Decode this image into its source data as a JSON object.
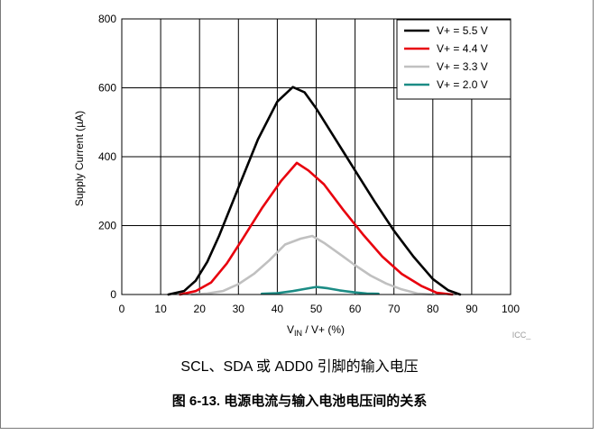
{
  "chart_data": {
    "type": "line",
    "title": "",
    "xlabel": {
      "main": "V",
      "sub": "IN",
      "rest": " / V+ (%)"
    },
    "ylabel": "Supply Current (µA)",
    "xlim": [
      0,
      100
    ],
    "ylim": [
      0,
      800
    ],
    "xticks": [
      0,
      10,
      20,
      30,
      40,
      50,
      60,
      70,
      80,
      90,
      100
    ],
    "yticks": [
      0,
      200,
      400,
      600,
      800
    ],
    "grid": true,
    "legend_position": "top-right",
    "series": [
      {
        "name": "V+ = 5.5 V",
        "color": "#000000",
        "x": [
          12,
          16,
          19,
          22,
          25,
          30,
          35,
          40,
          44,
          47,
          50,
          55,
          60,
          65,
          70,
          75,
          80,
          84,
          87
        ],
        "y": [
          0,
          10,
          40,
          95,
          170,
          310,
          450,
          560,
          602,
          587,
          540,
          450,
          360,
          270,
          185,
          110,
          45,
          12,
          0
        ]
      },
      {
        "name": "V+ = 4.4 V",
        "color": "#e8000d",
        "x": [
          15,
          19,
          23,
          27,
          31,
          36,
          41,
          45,
          48,
          52,
          57,
          62,
          67,
          72,
          77,
          81,
          85
        ],
        "y": [
          0,
          10,
          35,
          90,
          160,
          250,
          330,
          382,
          360,
          320,
          245,
          175,
          110,
          60,
          25,
          5,
          0
        ]
      },
      {
        "name": "V+ = 3.3 V",
        "color": "#c0c0c0",
        "x": [
          18,
          22,
          26,
          30,
          34,
          38,
          42,
          46,
          49,
          52,
          56,
          60,
          64,
          68,
          72,
          76,
          80
        ],
        "y": [
          0,
          3,
          10,
          30,
          60,
          100,
          145,
          162,
          170,
          150,
          118,
          85,
          55,
          32,
          15,
          3,
          0
        ]
      },
      {
        "name": "V+ = 2.0 V",
        "color": "#1b8c85",
        "x": [
          36,
          40,
          44,
          47,
          50,
          53,
          56,
          60,
          63,
          66
        ],
        "y": [
          2,
          4,
          10,
          16,
          22,
          18,
          12,
          6,
          3,
          2
        ]
      }
    ]
  },
  "watermark": "ICC_",
  "subcaption": "SCL、SDA 或 ADD0 引脚的输入电压",
  "figure_title": "图 6-13. 电源电流与输入电池电压间的关系"
}
